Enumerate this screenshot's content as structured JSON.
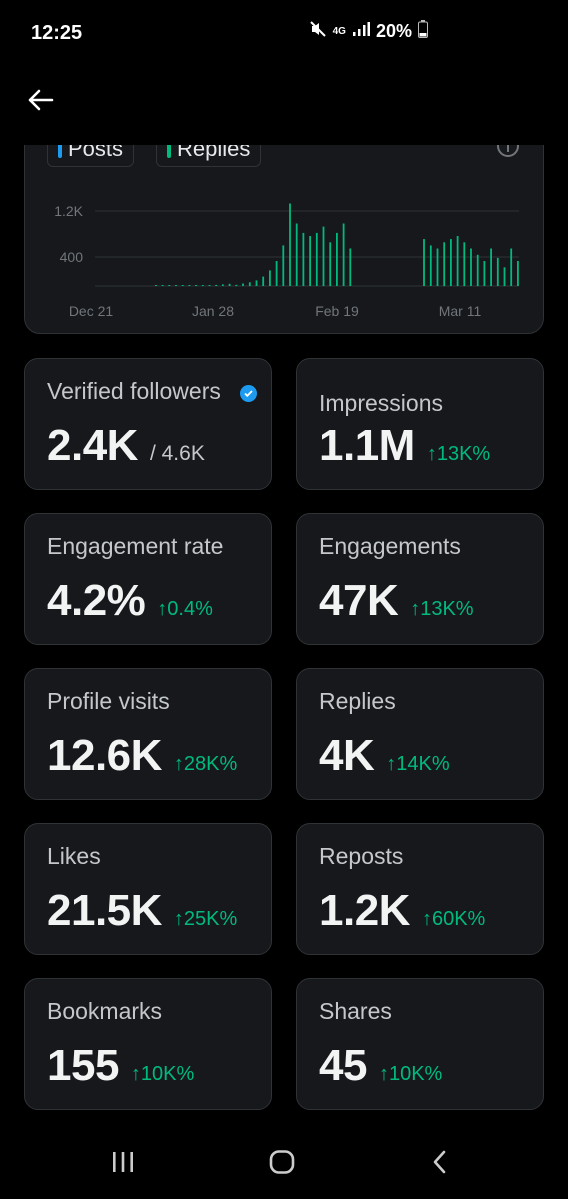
{
  "status_bar": {
    "time": "12:25",
    "network": "4G",
    "battery": "20%"
  },
  "chart": {
    "legend": [
      {
        "label": "Posts",
        "color": "#1d9bf0"
      },
      {
        "label": "Replies",
        "color": "#00ba7c"
      }
    ]
  },
  "chart_data": {
    "type": "bar",
    "y_ticks": [
      "1.2K",
      "400"
    ],
    "x_ticks": [
      "Dec 21",
      "Jan 28",
      "Feb 19",
      "Mar 11"
    ],
    "grid": true,
    "series": [
      {
        "name": "Replies",
        "color": "#00ba7c",
        "values": [
          2,
          2,
          3,
          3,
          5,
          6,
          8,
          10,
          12,
          18,
          25,
          35,
          20,
          40,
          60,
          90,
          150,
          250,
          400,
          650,
          1320,
          1000,
          850,
          800,
          850,
          950,
          700,
          850,
          1000,
          600,
          0,
          0,
          0,
          0,
          0,
          0,
          0,
          0,
          0,
          0,
          750,
          650,
          600,
          700,
          750,
          800,
          700,
          600,
          500,
          400,
          600,
          450,
          300,
          600,
          400
        ]
      }
    ]
  },
  "stats": [
    {
      "label": "Verified followers",
      "value": "2.4K",
      "sub": "/ 4.6K",
      "change": "",
      "verified": true
    },
    {
      "label": "Impressions",
      "value": "1.1M",
      "change": "↑13K%"
    },
    {
      "label": "Engagement rate",
      "value": "4.2%",
      "change": "↑0.4%"
    },
    {
      "label": "Engagements",
      "value": "47K",
      "change": "↑13K%"
    },
    {
      "label": "Profile visits",
      "value": "12.6K",
      "change": "↑28K%"
    },
    {
      "label": "Replies",
      "value": "4K",
      "change": "↑14K%"
    },
    {
      "label": "Likes",
      "value": "21.5K",
      "change": "↑25K%"
    },
    {
      "label": "Reposts",
      "value": "1.2K",
      "change": "↑60K%"
    },
    {
      "label": "Bookmarks",
      "value": "155",
      "change": "↑10K%"
    },
    {
      "label": "Shares",
      "value": "45",
      "change": "↑10K%"
    }
  ]
}
